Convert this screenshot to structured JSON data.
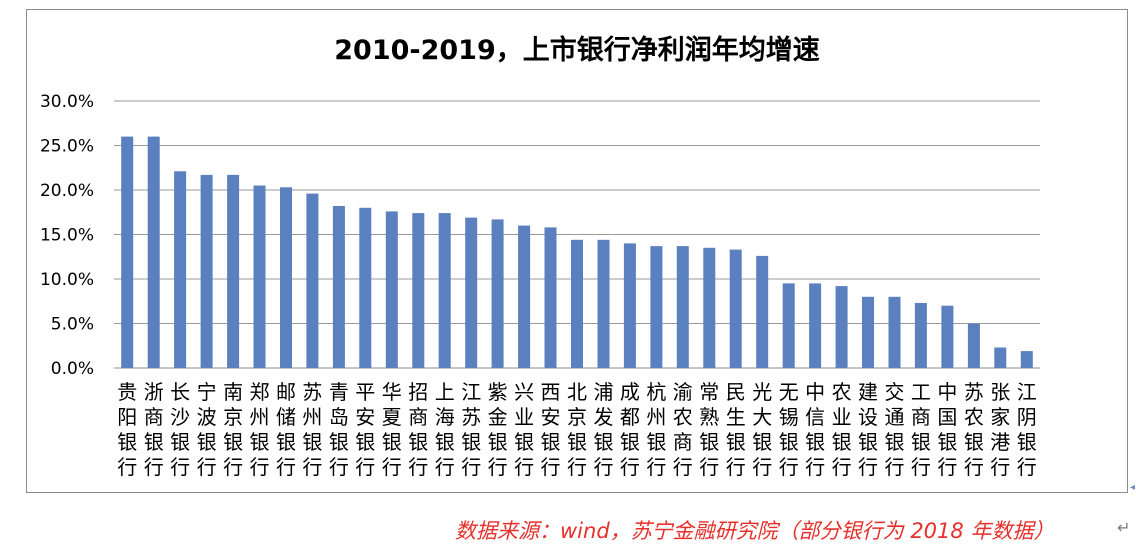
{
  "chart_data": {
    "type": "bar",
    "title": "2010-2019，上市银行净利润年均增速",
    "xlabel": "",
    "ylabel": "",
    "ylim": [
      0,
      0.3
    ],
    "yticks": [
      "30.0%",
      "25.0%",
      "20.0%",
      "15.0%",
      "10.0%",
      "5.0%",
      "0.0%"
    ],
    "grid": true,
    "legend": "none",
    "categories": [
      "贵阳银行",
      "浙商银行",
      "长沙银行",
      "宁波银行",
      "南京银行",
      "郑州银行",
      "邮储银行",
      "苏州银行",
      "青岛银行",
      "平安银行",
      "华夏银行",
      "招商银行",
      "上海银行",
      "江苏银行",
      "紫金银行",
      "兴业银行",
      "西安银行",
      "北京银行",
      "浦发银行",
      "成都银行",
      "杭州银行",
      "渝农商行",
      "常熟银行",
      "民生银行",
      "光大银行",
      "无锡银行",
      "中信银行",
      "农业银行",
      "建设银行",
      "交通银行",
      "工商银行",
      "中国银行",
      "苏农银行",
      "张家港行",
      "江阴银行"
    ],
    "values": [
      0.26,
      0.26,
      0.221,
      0.217,
      0.217,
      0.205,
      0.203,
      0.196,
      0.182,
      0.18,
      0.176,
      0.174,
      0.174,
      0.169,
      0.167,
      0.16,
      0.158,
      0.144,
      0.144,
      0.14,
      0.137,
      0.137,
      0.135,
      0.133,
      0.126,
      0.095,
      0.095,
      0.092,
      0.08,
      0.08,
      0.073,
      0.07,
      0.05,
      0.023,
      0.019
    ],
    "bar_color": "#5b80bf"
  },
  "footer": {
    "source": "数据来源：wind，苏宁金融研究院（部分银行为 2018 年数据）",
    "return_mark": "↵"
  }
}
